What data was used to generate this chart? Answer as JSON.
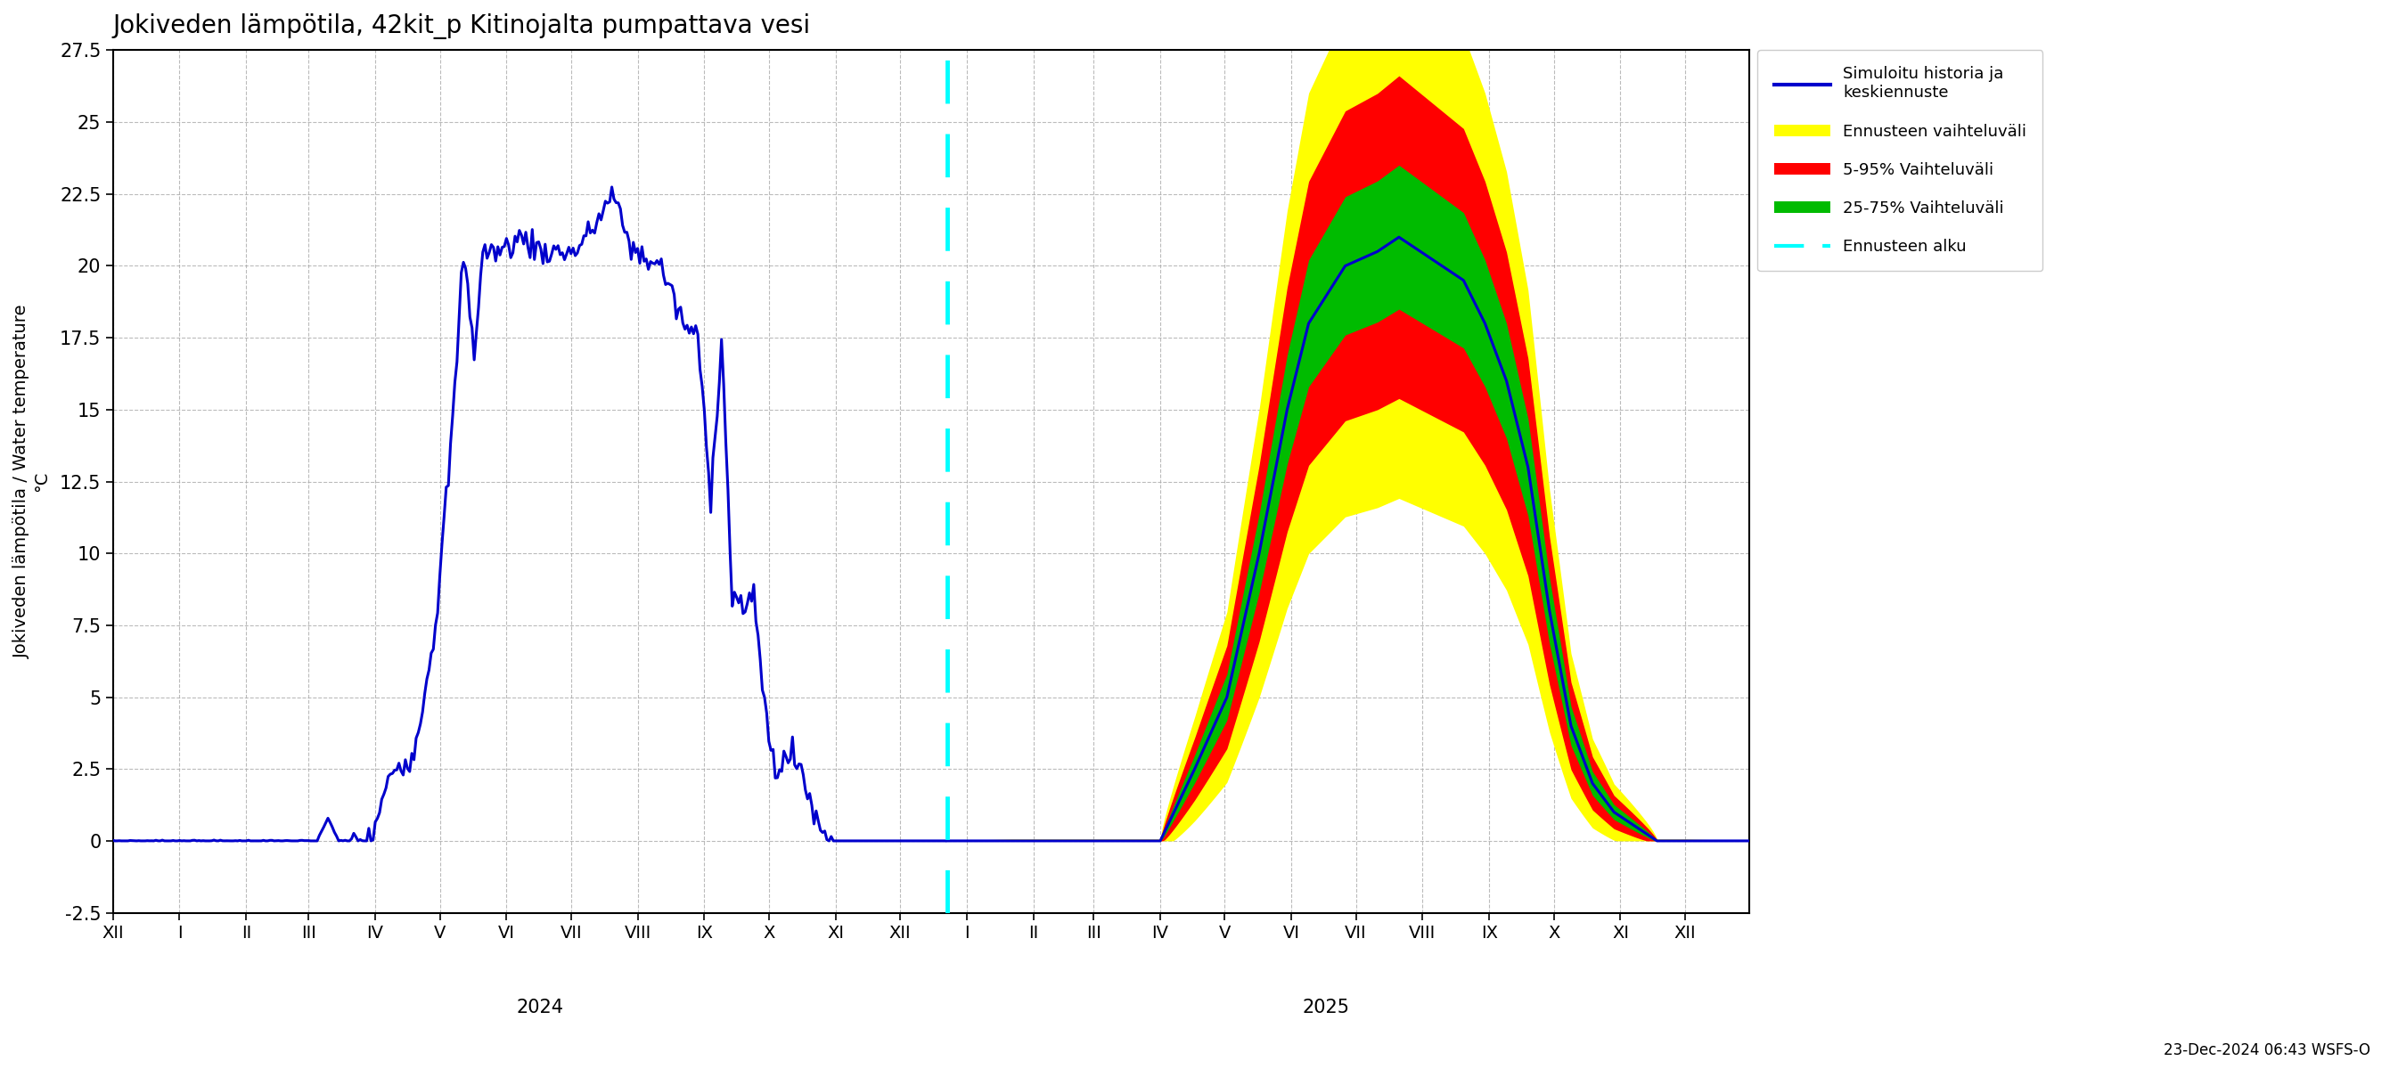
{
  "title": "Jokiveden lämpötila, 42kit_p Kitinojalta pumpattava vesi",
  "ylabel": "Jokiveden lämpötila / Water temperature",
  "ylabel_unit": "°C",
  "ylim": [
    -2.5,
    27.5
  ],
  "yticks": [
    -2.5,
    0.0,
    2.5,
    5.0,
    7.5,
    10.0,
    12.5,
    15.0,
    17.5,
    20.0,
    22.5,
    25.0,
    27.5
  ],
  "background_color": "#ffffff",
  "grid_color": "#aaaaaa",
  "history_color": "#0000cc",
  "forecast_mean_color": "#0000cc",
  "band_yellow_color": "#ffff00",
  "band_red_color": "#ff0000",
  "band_green_color": "#00bb00",
  "vline_color": "#00ffff",
  "legend_labels": [
    "Simuloitu historia ja\nkeskiennuste",
    "Ennusteen vaihteluväli",
    "5-95% Vaihteluväli",
    "25-75% Vaihteluväli",
    "Ennusteen alku"
  ],
  "timestamp_text": "23-Dec-2024 06:43 WSFS-O",
  "months_2024": [
    "XII",
    "I",
    "II",
    "III",
    "IV",
    "V",
    "VI",
    "VII",
    "VIII",
    "IX",
    "X",
    "XI",
    "XII"
  ],
  "months_2025": [
    "I",
    "II",
    "III",
    "IV",
    "V",
    "VI",
    "VII",
    "VIII",
    "IX",
    "X",
    "XI",
    "XII"
  ]
}
